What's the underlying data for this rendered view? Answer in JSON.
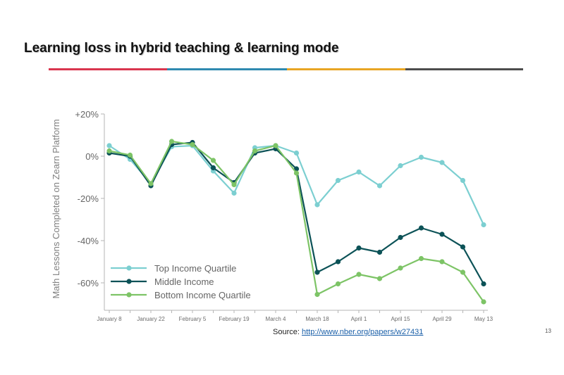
{
  "slide": {
    "title": "Learning loss in hybrid teaching & learning mode",
    "rule_colors": [
      "#d9354e",
      "#2f8ab0",
      "#e8a524",
      "#4d4d4d"
    ],
    "source_prefix": "Source: ",
    "source_link": "http://www.nber.org/papers/w27431",
    "page_number": "13"
  },
  "chart_data": {
    "type": "line",
    "title": "",
    "xlabel": "",
    "ylabel": "Math Lessons Completed on Zearn Platform",
    "ylim": [
      -70,
      20
    ],
    "yticks": [
      20,
      0,
      -20,
      -40,
      -60
    ],
    "ytick_labels": [
      "+20%",
      "0%",
      "-20%",
      "-40%",
      "-60%"
    ],
    "x": [
      "January 8",
      "January 15",
      "January 22",
      "January 29",
      "February 5",
      "February 12",
      "February 19",
      "February 26",
      "March 4",
      "March 11",
      "March 18",
      "March 25",
      "April 1",
      "April 8",
      "April 15",
      "April 22",
      "April 29",
      "May 6",
      "May 13"
    ],
    "xtick_labels": [
      "January 8",
      "",
      "January 22",
      "",
      "February 5",
      "",
      "February 19",
      "",
      "March 4",
      "",
      "March 18",
      "",
      "April 1",
      "",
      "April 15",
      "",
      "April 29",
      "",
      "May 13"
    ],
    "legend_position": "bottom-left",
    "grid": false,
    "series": [
      {
        "name": "Top Income Quartile",
        "color": "#7ccfd1",
        "values": [
          5,
          -1.5,
          -13,
          4.5,
          5,
          -7,
          -17.5,
          4,
          5,
          1.5,
          -23,
          -11.5,
          -7.5,
          -14,
          -4.5,
          -0.5,
          -3,
          -11.5,
          -32.5
        ]
      },
      {
        "name": "Middle Income",
        "color": "#0c5257",
        "values": [
          1.5,
          0,
          -14,
          5.5,
          6.5,
          -5.5,
          -12.5,
          1.5,
          3.5,
          -6,
          -55,
          -50,
          -43.5,
          -45.5,
          -38.5,
          -34,
          -37,
          -43,
          -60.5
        ]
      },
      {
        "name": "Bottom Income Quartile",
        "color": "#7dc466",
        "values": [
          2.5,
          0.5,
          -13,
          7,
          5.5,
          -2,
          -13.5,
          2.5,
          5,
          -8,
          -65.5,
          -60.5,
          -56,
          -58,
          -53,
          -48.5,
          -50,
          -55,
          -69
        ]
      }
    ]
  }
}
